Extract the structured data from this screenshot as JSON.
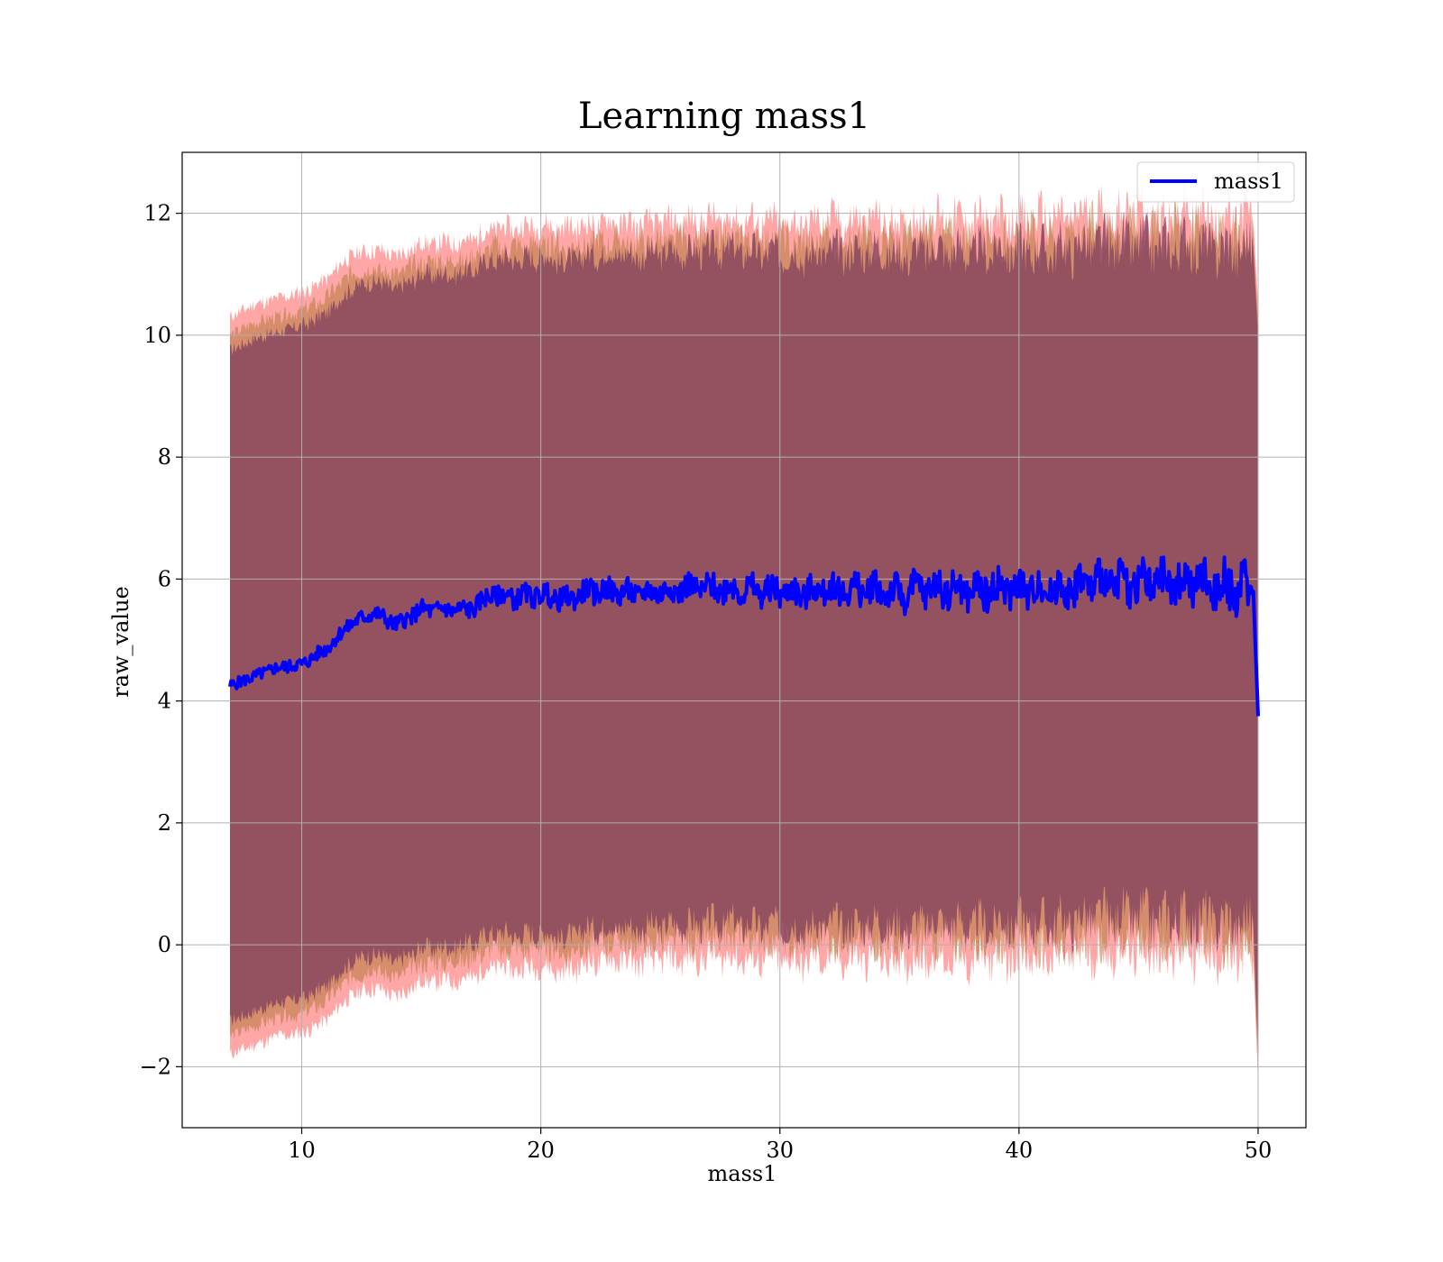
{
  "chart_data": {
    "type": "area",
    "title": "Learning mass1",
    "xlabel": "mass1",
    "ylabel": "raw_value",
    "xlim": [
      5,
      52
    ],
    "ylim": [
      -3.0,
      13.0
    ],
    "xticks": [
      10,
      20,
      30,
      40,
      50
    ],
    "yticks": [
      -2,
      0,
      2,
      4,
      6,
      8,
      10,
      12
    ],
    "grid": true,
    "legend": {
      "position": "top-right",
      "entries": [
        "mass1"
      ]
    },
    "series": [
      {
        "name": "mass1",
        "color": "#0000ff",
        "x": [
          7.0,
          8,
          9,
          10,
          11,
          12,
          13,
          14,
          15,
          16,
          17,
          18,
          19,
          20,
          21,
          22,
          23,
          24,
          25,
          26,
          27,
          28,
          29,
          30,
          31,
          32,
          33,
          34,
          35,
          36,
          37,
          38,
          39,
          40,
          41,
          42,
          43,
          44,
          45,
          46,
          47,
          48,
          49,
          49.8,
          50.0
        ],
        "values": [
          4.25,
          4.4,
          4.55,
          4.6,
          4.85,
          5.25,
          5.45,
          5.25,
          5.5,
          5.5,
          5.5,
          5.75,
          5.7,
          5.75,
          5.65,
          5.8,
          5.8,
          5.75,
          5.8,
          5.85,
          5.85,
          5.85,
          5.8,
          5.8,
          5.75,
          5.85,
          5.8,
          5.85,
          5.75,
          5.85,
          5.85,
          5.8,
          5.85,
          5.85,
          5.85,
          5.85,
          5.95,
          5.95,
          5.95,
          5.9,
          5.95,
          5.9,
          5.85,
          5.8,
          3.75
        ]
      }
    ],
    "bands": [
      {
        "role": "outer",
        "color": "#ff0000",
        "upper": [
          10.3,
          10.5,
          10.6,
          10.7,
          10.9,
          11.3,
          11.4,
          11.3,
          11.5,
          11.5,
          11.55,
          11.75,
          11.75,
          11.8,
          11.75,
          11.8,
          11.85,
          11.8,
          11.85,
          11.85,
          11.9,
          11.9,
          11.85,
          11.85,
          11.8,
          11.9,
          11.85,
          11.9,
          11.8,
          11.9,
          11.9,
          11.85,
          11.9,
          11.9,
          11.9,
          11.9,
          12.0,
          12.0,
          12.0,
          11.95,
          12.0,
          11.95,
          11.9,
          11.9,
          10.5
        ],
        "lower": [
          -1.8,
          -1.65,
          -1.5,
          -1.45,
          -1.25,
          -0.85,
          -0.7,
          -0.85,
          -0.6,
          -0.6,
          -0.55,
          -0.35,
          -0.4,
          -0.35,
          -0.45,
          -0.3,
          -0.25,
          -0.3,
          -0.25,
          -0.25,
          -0.2,
          -0.2,
          -0.25,
          -0.25,
          -0.3,
          -0.2,
          -0.25,
          -0.2,
          -0.3,
          -0.2,
          -0.2,
          -0.25,
          -0.2,
          -0.2,
          -0.2,
          -0.2,
          -0.1,
          -0.1,
          -0.1,
          -0.15,
          -0.1,
          -0.15,
          -0.2,
          -0.25,
          -2.3
        ]
      },
      {
        "role": "middle",
        "color": "#b4783c",
        "upper": [
          10.0,
          10.2,
          10.3,
          10.4,
          10.6,
          11.0,
          11.1,
          11.0,
          11.2,
          11.2,
          11.25,
          11.45,
          11.45,
          11.5,
          11.45,
          11.5,
          11.55,
          11.5,
          11.55,
          11.55,
          11.6,
          11.6,
          11.55,
          11.55,
          11.5,
          11.6,
          11.55,
          11.6,
          11.5,
          11.6,
          11.6,
          11.55,
          11.6,
          11.6,
          11.6,
          11.6,
          11.7,
          11.7,
          11.7,
          11.65,
          11.7,
          11.65,
          11.6,
          11.6,
          10.2
        ],
        "lower": [
          -1.5,
          -1.35,
          -1.2,
          -1.15,
          -0.95,
          -0.55,
          -0.4,
          -0.55,
          -0.3,
          -0.3,
          -0.25,
          -0.05,
          -0.1,
          -0.05,
          -0.15,
          0.0,
          0.05,
          0.0,
          0.05,
          0.05,
          0.1,
          0.1,
          0.05,
          0.05,
          0.0,
          0.1,
          0.05,
          0.1,
          0.0,
          0.1,
          0.1,
          0.05,
          0.1,
          0.1,
          0.1,
          0.1,
          0.2,
          0.2,
          0.2,
          0.15,
          0.2,
          0.15,
          0.1,
          0.05,
          -2.0
        ]
      },
      {
        "role": "inner",
        "color": "#7a3a5a",
        "upper": [
          9.75,
          9.95,
          10.05,
          10.15,
          10.35,
          10.75,
          10.9,
          10.75,
          11.0,
          11.0,
          11.05,
          11.25,
          11.25,
          11.3,
          11.2,
          11.3,
          11.35,
          11.3,
          11.35,
          11.35,
          11.4,
          11.4,
          11.35,
          11.35,
          11.3,
          11.4,
          11.35,
          11.4,
          11.3,
          11.4,
          11.4,
          11.35,
          11.4,
          11.4,
          11.4,
          11.4,
          11.5,
          11.5,
          11.5,
          11.45,
          11.5,
          11.45,
          11.4,
          11.4,
          10.0
        ],
        "lower": [
          -1.25,
          -1.1,
          -0.95,
          -0.9,
          -0.7,
          -0.3,
          -0.15,
          -0.3,
          -0.05,
          -0.05,
          0.0,
          0.2,
          0.15,
          0.2,
          0.1,
          0.25,
          0.3,
          0.25,
          0.3,
          0.3,
          0.35,
          0.35,
          0.3,
          0.3,
          0.25,
          0.35,
          0.3,
          0.35,
          0.25,
          0.35,
          0.35,
          0.3,
          0.35,
          0.35,
          0.35,
          0.35,
          0.45,
          0.45,
          0.45,
          0.4,
          0.45,
          0.4,
          0.35,
          0.3,
          -1.8
        ]
      }
    ]
  }
}
